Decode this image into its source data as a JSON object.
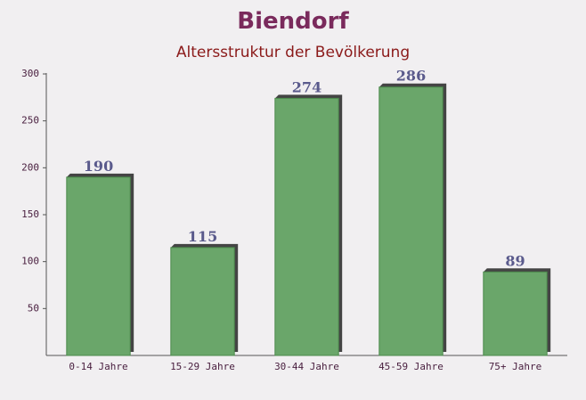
{
  "chart_data": {
    "type": "bar",
    "title": "Biendorf",
    "subtitle": "Altersstruktur der Bevölkerung",
    "categories": [
      "0-14 Jahre",
      "15-29 Jahre",
      "30-44 Jahre",
      "45-59 Jahre",
      "75+ Jahre"
    ],
    "values": [
      190,
      115,
      274,
      286,
      89
    ],
    "color": "#6aa66a",
    "ylim": [
      0,
      300
    ],
    "yticks": [
      50,
      100,
      150,
      200,
      250,
      300
    ]
  }
}
